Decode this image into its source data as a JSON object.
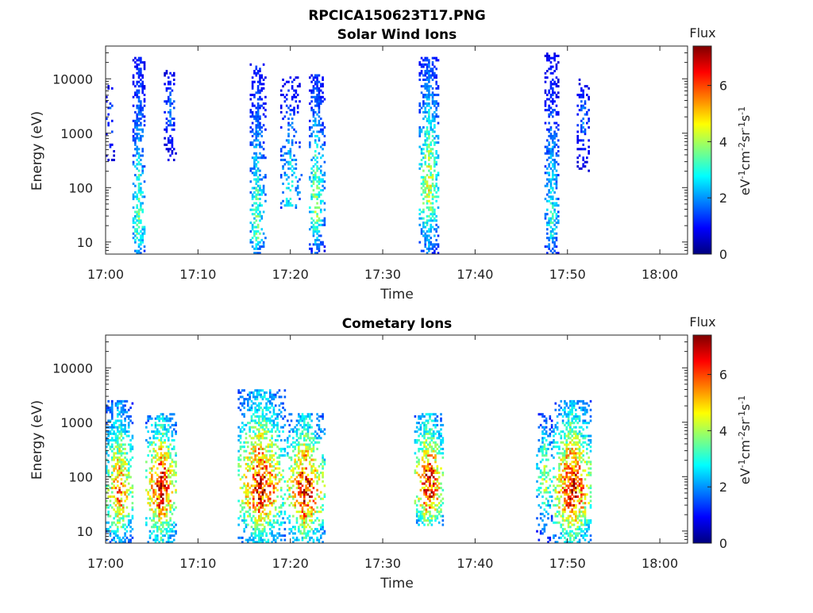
{
  "figure": {
    "title": "RPCICA150623T17.PNG"
  },
  "colormap": {
    "stops": [
      "#00007f",
      "#0000ff",
      "#007fff",
      "#00ffff",
      "#7fff7f",
      "#ffff00",
      "#ff7f00",
      "#ff0000",
      "#7f0000"
    ],
    "range": [
      0,
      7.4
    ]
  },
  "chart_data": [
    {
      "type": "heatmap",
      "title": "Solar Wind Ions",
      "xlabel": "Time",
      "ylabel": "Energy (eV)",
      "x_ticks": [
        "17:00",
        "17:10",
        "17:20",
        "17:30",
        "17:40",
        "17:50",
        "18:00"
      ],
      "x_range_minutes": [
        0,
        63
      ],
      "y_scale": "log",
      "y_ticks": [
        10,
        100,
        1000,
        10000
      ],
      "y_tick_labels": [
        "10",
        "100",
        "1000",
        "10000"
      ],
      "y_range": [
        6,
        40000
      ],
      "colorbar": {
        "label": "Flux",
        "unit": "eV-1cm-2sr-1s-1",
        "ticks": [
          "0",
          "2",
          "4",
          "6"
        ],
        "range": [
          0,
          7.4
        ]
      },
      "clusters": [
        {
          "t": 0.5,
          "dt": 1.0,
          "e_lo": 300,
          "e_hi": 9000,
          "peak_e": 2000,
          "peak": 1.6,
          "density": 0.25
        },
        {
          "t": 3.6,
          "dt": 1.4,
          "e_lo": 6,
          "e_hi": 25000,
          "peak_e": 15,
          "peak": 3.6,
          "density": 0.6
        },
        {
          "t": 7.0,
          "dt": 1.4,
          "e_lo": 300,
          "e_hi": 15000,
          "peak_e": 3000,
          "peak": 1.8,
          "density": 0.4
        },
        {
          "t": 16.4,
          "dt": 1.6,
          "e_lo": 6,
          "e_hi": 20000,
          "peak_e": 15,
          "peak": 3.5,
          "density": 0.6
        },
        {
          "t": 20.0,
          "dt": 2.2,
          "e_lo": 40,
          "e_hi": 12000,
          "peak_e": 60,
          "peak": 3.0,
          "density": 0.3
        },
        {
          "t": 22.8,
          "dt": 1.6,
          "e_lo": 6,
          "e_hi": 12000,
          "peak_e": 40,
          "peak": 4.0,
          "density": 0.6
        },
        {
          "t": 35.0,
          "dt": 2.2,
          "e_lo": 6,
          "e_hi": 25000,
          "peak_e": 80,
          "peak": 4.4,
          "density": 0.6
        },
        {
          "t": 48.3,
          "dt": 1.6,
          "e_lo": 6,
          "e_hi": 30000,
          "peak_e": 20,
          "peak": 3.0,
          "density": 0.6
        },
        {
          "t": 51.7,
          "dt": 1.4,
          "e_lo": 200,
          "e_hi": 10000,
          "peak_e": 2000,
          "peak": 1.8,
          "density": 0.4
        }
      ]
    },
    {
      "type": "heatmap",
      "title": "Cometary Ions",
      "xlabel": "Time",
      "ylabel": "Energy (eV)",
      "x_ticks": [
        "17:00",
        "17:10",
        "17:20",
        "17:30",
        "17:40",
        "17:50",
        "18:00"
      ],
      "x_range_minutes": [
        0,
        63
      ],
      "y_scale": "log",
      "y_ticks": [
        10,
        100,
        1000,
        10000
      ],
      "y_tick_labels": [
        "10",
        "100",
        "1000",
        "10000"
      ],
      "y_range": [
        6,
        40000
      ],
      "colorbar": {
        "label": "Flux",
        "unit": "eV-1cm-2sr-1s-1",
        "ticks": [
          "0",
          "2",
          "4",
          "6"
        ],
        "range": [
          0,
          7.4
        ]
      },
      "clusters": [
        {
          "t": 1.5,
          "dt": 3.0,
          "e_lo": 6,
          "e_hi": 2500,
          "peak_e": 50,
          "peak": 5.8,
          "density": 0.6
        },
        {
          "t": 6.0,
          "dt": 3.4,
          "e_lo": 6,
          "e_hi": 1500,
          "peak_e": 60,
          "peak": 6.8,
          "density": 0.65
        },
        {
          "t": 16.8,
          "dt": 5.0,
          "e_lo": 6,
          "e_hi": 4000,
          "peak_e": 60,
          "peak": 6.6,
          "density": 0.6
        },
        {
          "t": 21.6,
          "dt": 4.0,
          "e_lo": 6,
          "e_hi": 1500,
          "peak_e": 50,
          "peak": 6.8,
          "density": 0.6
        },
        {
          "t": 35.0,
          "dt": 3.2,
          "e_lo": 12,
          "e_hi": 1500,
          "peak_e": 60,
          "peak": 6.9,
          "density": 0.65
        },
        {
          "t": 47.5,
          "dt": 1.8,
          "e_lo": 6,
          "e_hi": 1500,
          "peak_e": 100,
          "peak": 4.2,
          "density": 0.45
        },
        {
          "t": 50.5,
          "dt": 4.2,
          "e_lo": 6,
          "e_hi": 2500,
          "peak_e": 50,
          "peak": 6.8,
          "density": 0.65
        }
      ]
    }
  ]
}
